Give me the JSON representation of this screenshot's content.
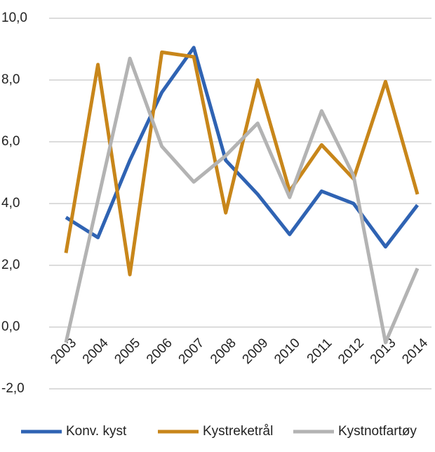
{
  "chart_data": {
    "type": "line",
    "categories": [
      "2003",
      "2004",
      "2005",
      "2006",
      "2007",
      "2008",
      "2009",
      "2010",
      "2011",
      "2012",
      "2013",
      "2014"
    ],
    "series": [
      {
        "name": "Konv. kyst",
        "color": "#2f63b3",
        "values": [
          3.55,
          2.9,
          5.4,
          7.6,
          9.05,
          5.4,
          4.3,
          3.0,
          4.4,
          4.0,
          2.6,
          3.95
        ]
      },
      {
        "name": "Kystreketrål",
        "color": "#c8861a",
        "values": [
          2.4,
          8.5,
          1.7,
          8.9,
          8.75,
          3.7,
          8.0,
          4.4,
          5.9,
          4.8,
          7.95,
          4.3
        ]
      },
      {
        "name": "Kystnotfartøy",
        "color": "#b3b3b3",
        "values": [
          -0.5,
          4.1,
          8.7,
          5.85,
          4.7,
          5.55,
          6.6,
          4.2,
          7.0,
          4.9,
          -0.5,
          1.9
        ]
      }
    ],
    "ylim": [
      -2,
      10
    ],
    "yticks": [
      {
        "value": -2,
        "label": "-2,0"
      },
      {
        "value": 0,
        "label": "0,0"
      },
      {
        "value": 2,
        "label": "2,0"
      },
      {
        "value": 4,
        "label": "4,0"
      },
      {
        "value": 6,
        "label": "6,0"
      },
      {
        "value": 8,
        "label": "8,0"
      },
      {
        "value": 10,
        "label": "10,0"
      }
    ],
    "grid": true
  }
}
